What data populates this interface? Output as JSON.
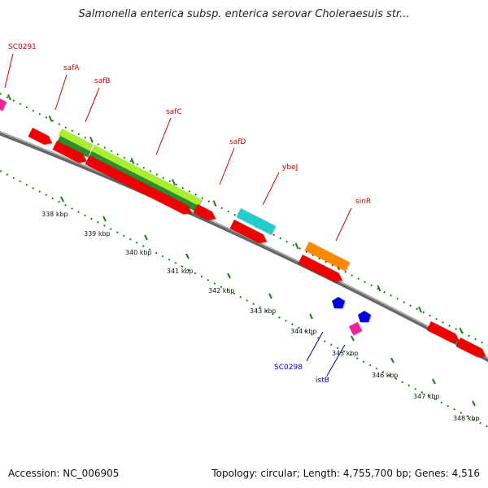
{
  "title": "Salmonella enterica subsp. enterica serovar Choleraesuis str...",
  "footer": {
    "accession": "Accession: NC_006905",
    "summary": "Topology: circular; Length: 4,755,700 bp; Genes: 4,516"
  },
  "colors": {
    "backbone": "#8a8a8a",
    "tick": "#1e7d1e",
    "label_forward": "#cc0000",
    "label_reverse": "#0000bb",
    "red": "#ee0000",
    "lightgreen": "#aaee33",
    "darkgreen": "#2e8b2e",
    "cyan": "#22cccc",
    "orange": "#ff8800",
    "magenta": "#ee2299",
    "blue": "#0000dd"
  },
  "kbp_ticks": [
    "338 kbp",
    "339 kbp",
    "340 kbp",
    "341 kbp",
    "342 kbp",
    "343 kbp",
    "344 kbp",
    "345 kbp",
    "346 kbp",
    "347 kbp",
    "348 kbp"
  ],
  "gene_labels": [
    {
      "text": "SC0291",
      "strand": "forward"
    },
    {
      "text": "safA",
      "strand": "forward"
    },
    {
      "text": "safB",
      "strand": "forward"
    },
    {
      "text": "safC",
      "strand": "forward"
    },
    {
      "text": "safD",
      "strand": "forward"
    },
    {
      "text": "ybeJ",
      "strand": "forward"
    },
    {
      "text": "sinR",
      "strand": "forward"
    },
    {
      "text": "SC0298",
      "strand": "reverse"
    },
    {
      "text": "istB",
      "strand": "reverse"
    }
  ]
}
